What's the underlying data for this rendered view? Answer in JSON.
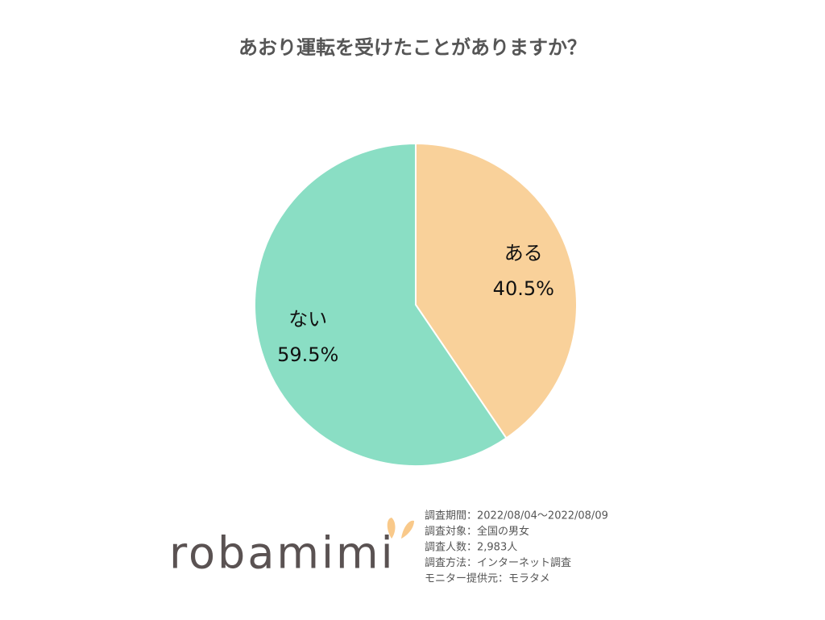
{
  "chart_data": {
    "type": "pie",
    "title": "あおり運転を受けたことがありますか？",
    "categories": [
      "ある",
      "ない"
    ],
    "values": [
      40.5,
      59.5
    ],
    "value_labels": [
      "40.5%",
      "59.5%"
    ],
    "colors": [
      "#f9d19a",
      "#8adec4"
    ]
  },
  "footer": {
    "logo": "robamimi",
    "notes": [
      "調査期間：2022/08/04～2022/08/09",
      "調査対象：全国の男女",
      "調査人数：2,983人",
      "調査方法：インターネット調査",
      "モニター提供元：モラタメ"
    ]
  }
}
